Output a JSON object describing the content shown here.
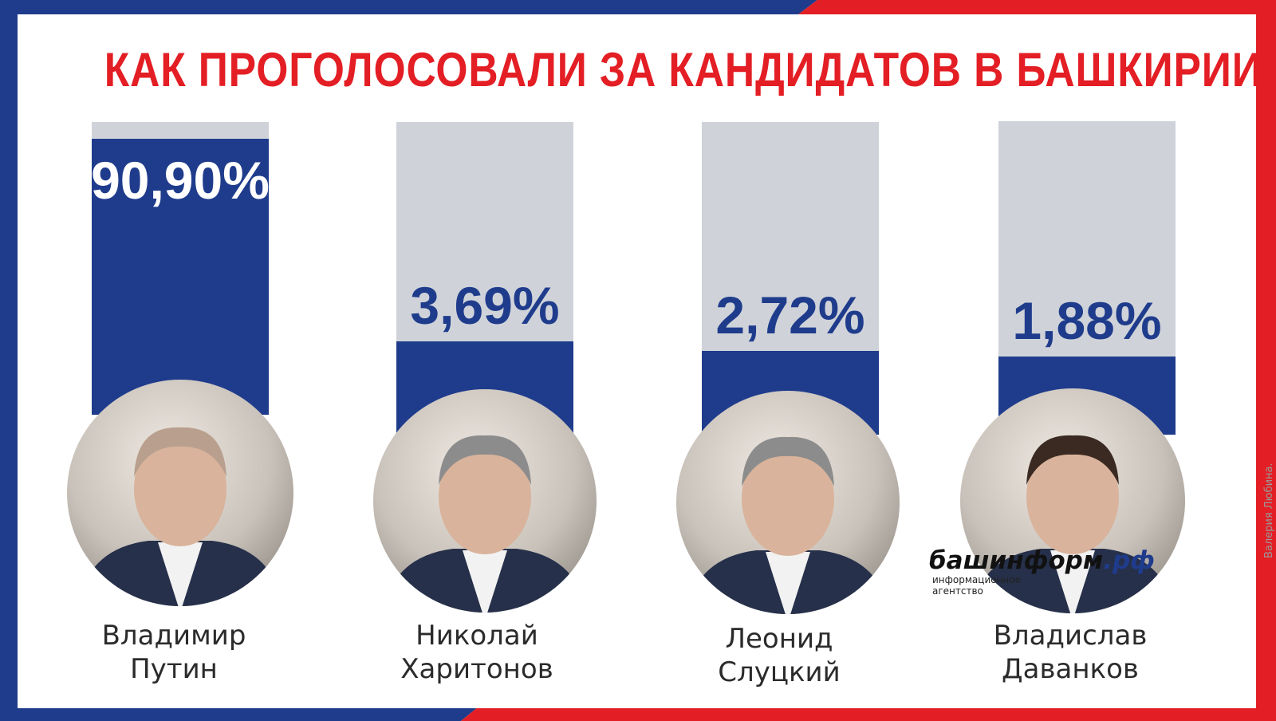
{
  "title": "КАК ПРОГОЛОСОВАЛИ ЗА КАНДИДАТОВ В БАШКИРИИ",
  "colors": {
    "blue": "#1f3c8c",
    "red": "#e31e24",
    "bar_track": "#cfd3d9",
    "white": "#ffffff"
  },
  "chart_data": {
    "type": "bar",
    "categories": [
      "Владимир Путин",
      "Николай Харитонов",
      "Леонид Слуцкий",
      "Владислав Даванков"
    ],
    "values": [
      90.9,
      3.69,
      2.72,
      1.88
    ],
    "value_labels": [
      "90,90%",
      "3,69%",
      "2,72%",
      "1,88%"
    ],
    "title": "КАК ПРОГОЛОСОВАЛИ ЗА КАНДИДАТОВ В БАШКИРИИ",
    "ylim": [
      0,
      100
    ],
    "grid": false,
    "legend": "none"
  },
  "candidates": [
    {
      "first_name": "Владимир",
      "last_name": "Путин",
      "photo": "portrait-photo"
    },
    {
      "first_name": "Николай",
      "last_name": "Харитонов",
      "photo": "portrait-photo"
    },
    {
      "first_name": "Леонид",
      "last_name": "Слуцкий",
      "photo": "portrait-photo"
    },
    {
      "first_name": "Владислав",
      "last_name": "Даванков",
      "photo": "portrait-photo"
    }
  ],
  "logo": {
    "main": "башинформ",
    "suffix": ".рф",
    "subtitle": "информационное агентство"
  },
  "credit": "Валерия Любина."
}
